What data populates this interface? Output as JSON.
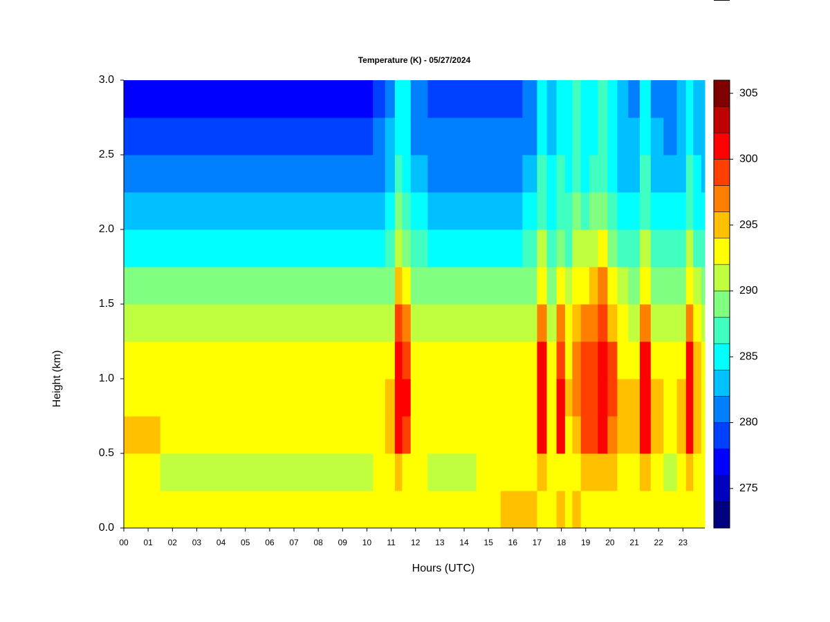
{
  "chart_data": {
    "type": "heatmap",
    "title": "Temperature (K) - 05/27/2024",
    "x_label": "Hours (UTC)",
    "y_label": "Height (km)",
    "xlim": [
      0,
      23.9
    ],
    "ylim": [
      0,
      3
    ],
    "xticks": [
      {
        "value": 0,
        "label": "00"
      },
      {
        "value": 1,
        "label": "01"
      },
      {
        "value": 2,
        "label": "02"
      },
      {
        "value": 3,
        "label": "03"
      },
      {
        "value": 4,
        "label": "04"
      },
      {
        "value": 5,
        "label": "05"
      },
      {
        "value": 6,
        "label": "06"
      },
      {
        "value": 7,
        "label": "07"
      },
      {
        "value": 8,
        "label": "08"
      },
      {
        "value": 9,
        "label": "09"
      },
      {
        "value": 10,
        "label": "10"
      },
      {
        "value": 11,
        "label": "11"
      },
      {
        "value": 12,
        "label": "12"
      },
      {
        "value": 13,
        "label": "13"
      },
      {
        "value": 14,
        "label": "14"
      },
      {
        "value": 15,
        "label": "15"
      },
      {
        "value": 16,
        "label": "16"
      },
      {
        "value": 17,
        "label": "17"
      },
      {
        "value": 18,
        "label": "18"
      },
      {
        "value": 19,
        "label": "19"
      },
      {
        "value": 20,
        "label": "20"
      },
      {
        "value": 21,
        "label": "21"
      },
      {
        "value": 22,
        "label": "22"
      },
      {
        "value": 23,
        "label": "23"
      }
    ],
    "yticks": [
      {
        "value": 0,
        "label": "0.0"
      },
      0.5,
      {
        "value": 1,
        "label": "1.0"
      },
      1.5,
      {
        "value": 2,
        "label": "2.0"
      },
      2.5,
      {
        "value": 3,
        "label": "3.0"
      }
    ],
    "x": [
      0,
      0.5,
      1,
      2,
      3,
      4,
      5,
      6,
      7,
      8,
      9,
      10,
      10.5,
      11.0,
      11.3,
      11.6,
      12,
      13,
      14,
      15,
      16,
      16.8,
      17.2,
      17.6,
      18.0,
      18.3,
      18.6,
      19.0,
      19.3,
      19.7,
      20.1,
      20.5,
      21.0,
      21.45,
      21.9,
      22.5,
      23.0,
      23.25,
      23.6,
      23.9
    ],
    "y": [
      0.125,
      0.375,
      0.625,
      0.875,
      1.125,
      1.375,
      1.625,
      1.875,
      2.125,
      2.375,
      2.625,
      2.875
    ],
    "values": [
      [
        292,
        293.5,
        294.5,
        293,
        292.5,
        291,
        289,
        285,
        283,
        281,
        279.5,
        277.5
      ],
      [
        292,
        293.5,
        294.5,
        293,
        292.5,
        291,
        289,
        285,
        283,
        281,
        279.5,
        277.5
      ],
      [
        292,
        293,
        294.5,
        293,
        292.5,
        291,
        289,
        285,
        283,
        281,
        279.5,
        277.5
      ],
      [
        292,
        291.5,
        293,
        293,
        292.5,
        291,
        289,
        285,
        283,
        281,
        279.5,
        277.5
      ],
      [
        292,
        291.5,
        293,
        293,
        292.5,
        291,
        289,
        285,
        283,
        281,
        279.5,
        277.5
      ],
      [
        292,
        291.5,
        293,
        293,
        292.5,
        291,
        289,
        285,
        283,
        281,
        279.5,
        277.5
      ],
      [
        292,
        291.5,
        293,
        293,
        292.5,
        291,
        289,
        285,
        283,
        281,
        279.5,
        277.5
      ],
      [
        292,
        291.5,
        293,
        293,
        292.5,
        291,
        289,
        285,
        283,
        281,
        279.5,
        277.5
      ],
      [
        292,
        291.5,
        293,
        293,
        292.5,
        291,
        289,
        285,
        283,
        281,
        279.5,
        277.5
      ],
      [
        292,
        291.5,
        293,
        293,
        292.5,
        291,
        289,
        285,
        283,
        281,
        279.5,
        277.5
      ],
      [
        292,
        291.5,
        293,
        293,
        292.5,
        291,
        289,
        285,
        283,
        281,
        279.5,
        277.5
      ],
      [
        292,
        291.5,
        293,
        293,
        292.5,
        291,
        289,
        285,
        283,
        281,
        279.5,
        277.5
      ],
      [
        292,
        292,
        293,
        293,
        292.5,
        291,
        289,
        285,
        283,
        281,
        280,
        278
      ],
      [
        293,
        293,
        294,
        294,
        293,
        291,
        289,
        286,
        284,
        283,
        282,
        281
      ],
      [
        293,
        294,
        300,
        301,
        301,
        298,
        294,
        291,
        288,
        286,
        285,
        285
      ],
      [
        293,
        293.5,
        298,
        300,
        299,
        296,
        292,
        289,
        286,
        285,
        284,
        284
      ],
      [
        292,
        292.5,
        293,
        293,
        292.5,
        291,
        289,
        286,
        284,
        282.5,
        281.5,
        280
      ],
      [
        292,
        291.5,
        293,
        293,
        292,
        290,
        288,
        285,
        283,
        281,
        280,
        279
      ],
      [
        292,
        291.5,
        293,
        293,
        292,
        290,
        288,
        285,
        283,
        281,
        280,
        279
      ],
      [
        292.5,
        292,
        293,
        293,
        292,
        290,
        288,
        285,
        283,
        281,
        280,
        279
      ],
      [
        294,
        293,
        293,
        293,
        292.5,
        290.5,
        288.5,
        285.5,
        283.5,
        281.5,
        280,
        279
      ],
      [
        294,
        293,
        293,
        293,
        292.5,
        291,
        289,
        286,
        284,
        282,
        281,
        280
      ],
      [
        293,
        294,
        300,
        301,
        300,
        297,
        293,
        290,
        287,
        286,
        285,
        285
      ],
      [
        293,
        293,
        293,
        293,
        292.5,
        291,
        289,
        286,
        285,
        284,
        283,
        282
      ],
      [
        294,
        293.5,
        300,
        300,
        299,
        296,
        292,
        289,
        287,
        286,
        285,
        285
      ],
      [
        292,
        292.5,
        293.5,
        294,
        293.5,
        292,
        290,
        287,
        286,
        285,
        284,
        284
      ],
      [
        294,
        293,
        295,
        296,
        296,
        294,
        292,
        290,
        288,
        287,
        286,
        286
      ],
      [
        293,
        294,
        299,
        299,
        298,
        296,
        293,
        290,
        287,
        285,
        285,
        284
      ],
      [
        293,
        294,
        298,
        299,
        298,
        296,
        294,
        290,
        288,
        286,
        285,
        285
      ],
      [
        293,
        295,
        301,
        301,
        301,
        299,
        296,
        292,
        289,
        287,
        286,
        286
      ],
      [
        293,
        294,
        297,
        298,
        298,
        295,
        292,
        288,
        286,
        285,
        284,
        284
      ],
      [
        292,
        293,
        294,
        294,
        293.5,
        292,
        290,
        286,
        284,
        283,
        282.5,
        282
      ],
      [
        292,
        293,
        294,
        294,
        293,
        291,
        289,
        286,
        284,
        283,
        282,
        281
      ],
      [
        292,
        294,
        300,
        301,
        300,
        297,
        293,
        290,
        287,
        286,
        285,
        285
      ],
      [
        292,
        293,
        294,
        294,
        293,
        291,
        289,
        286,
        284,
        283,
        282,
        281
      ],
      [
        292,
        291.5,
        293,
        293,
        292.5,
        291,
        289,
        286,
        284,
        282.5,
        281.5,
        281
      ],
      [
        292,
        292,
        294,
        294,
        293,
        291,
        289,
        286,
        284,
        283,
        282,
        282
      ],
      [
        292,
        294,
        300,
        301,
        300,
        297,
        293,
        290,
        287,
        286,
        285,
        285
      ],
      [
        292,
        292.5,
        295,
        295,
        294,
        292,
        290,
        287,
        285,
        284,
        283,
        283
      ],
      [
        292,
        292,
        293,
        293,
        292.5,
        291,
        289,
        286,
        284,
        283,
        282,
        282
      ]
    ],
    "colorbar": {
      "levels": [
        272,
        274,
        276,
        278,
        280,
        282,
        284,
        286,
        288,
        290,
        292,
        294,
        296,
        298,
        300,
        302,
        304,
        306
      ],
      "colors": [
        "#000080",
        "#0000c0",
        "#0000ff",
        "#0040ff",
        "#0080ff",
        "#00c0ff",
        "#00ffff",
        "#40ffc0",
        "#80ff80",
        "#c0ff40",
        "#ffff00",
        "#ffc000",
        "#ff8000",
        "#ff4000",
        "#ff0000",
        "#c00000",
        "#800000"
      ],
      "ticks": [
        275,
        280,
        285,
        290,
        295,
        300,
        305
      ]
    }
  }
}
